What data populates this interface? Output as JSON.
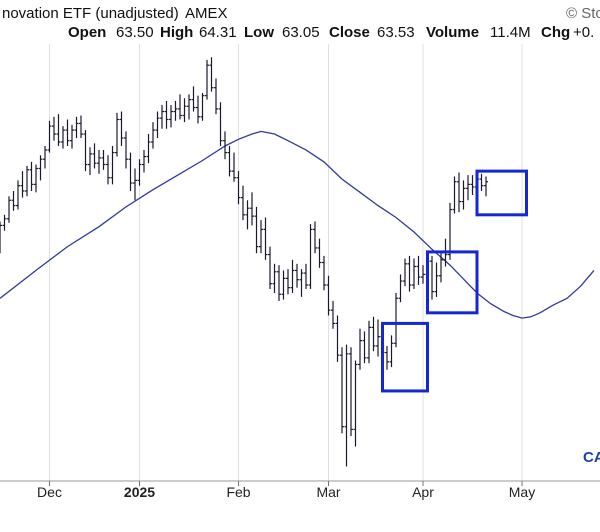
{
  "header": {
    "title": "novation ETF (unadjusted)",
    "exchange": "AMEX",
    "source": "© Sto",
    "open_label": "Open",
    "open_value": "63.50",
    "high_label": "High",
    "high_value": "64.31",
    "low_label": "Low",
    "low_value": "63.05",
    "close_label": "Close",
    "close_value": "63.53",
    "volume_label": "Volume",
    "volume_value": "11.4M",
    "chg_label": "Chg",
    "chg_value": "+0."
  },
  "watermark": "CA",
  "colors": {
    "bars": "#1a1a2e",
    "moving_average": "#2f3a9e",
    "boxes": "#1427d6",
    "grid": "#e0e0e0"
  },
  "chart_data": {
    "type": "ohlc",
    "ylim": [
      37,
      70
    ],
    "x_ticks": [
      {
        "label": "Dec",
        "x": 11,
        "bold": false
      },
      {
        "label": "2025",
        "x": 31,
        "bold": true
      },
      {
        "label": "Feb",
        "x": 53,
        "bold": false
      },
      {
        "label": "Mar",
        "x": 73,
        "bold": false
      },
      {
        "label": "Apr",
        "x": 94,
        "bold": false
      },
      {
        "label": "May",
        "x": 116,
        "bold": false
      }
    ],
    "price_bars": [
      [
        54.7,
        56.6,
        54.2,
        56.3
      ],
      [
        56.3,
        57.1,
        55.9,
        56.8
      ],
      [
        56.8,
        58.5,
        56.5,
        58.2
      ],
      [
        58.2,
        58.9,
        57.4,
        57.8
      ],
      [
        57.8,
        59.7,
        57.5,
        59.3
      ],
      [
        59.3,
        60.4,
        58.4,
        58.9
      ],
      [
        58.9,
        60.8,
        58.5,
        60.5
      ],
      [
        60.5,
        61.1,
        58.9,
        59.4
      ],
      [
        59.4,
        60.9,
        58.8,
        60.6
      ],
      [
        60.6,
        61.6,
        59.7,
        61.3
      ],
      [
        61.3,
        62.3,
        60.6,
        62.0
      ],
      [
        62.0,
        64.2,
        61.8,
        63.8
      ],
      [
        63.8,
        64.5,
        62.7,
        63.2
      ],
      [
        63.2,
        64.7,
        62.3,
        62.6
      ],
      [
        62.6,
        63.8,
        62.1,
        63.5
      ],
      [
        63.5,
        64.3,
        62.3,
        62.7
      ],
      [
        62.7,
        63.9,
        62.1,
        63.5
      ],
      [
        63.5,
        64.5,
        62.9,
        64.0
      ],
      [
        64.0,
        64.6,
        62.9,
        63.2
      ],
      [
        63.2,
        63.5,
        60.4,
        60.9
      ],
      [
        60.9,
        62.2,
        60.1,
        61.7
      ],
      [
        61.7,
        62.5,
        60.6,
        61.0
      ],
      [
        61.0,
        62.0,
        60.2,
        61.4
      ],
      [
        61.4,
        62.0,
        60.5,
        60.9
      ],
      [
        60.9,
        61.6,
        59.4,
        59.9
      ],
      [
        59.9,
        62.3,
        59.4,
        61.8
      ],
      [
        61.8,
        64.8,
        61.5,
        64.3
      ],
      [
        64.3,
        64.9,
        62.3,
        62.9
      ],
      [
        62.9,
        63.4,
        60.6,
        61.3
      ],
      [
        61.3,
        61.8,
        58.9,
        59.5
      ],
      [
        59.5,
        60.6,
        58.2,
        59.7
      ],
      [
        59.7,
        61.3,
        59.3,
        60.9
      ],
      [
        60.9,
        62.0,
        60.3,
        61.5
      ],
      [
        61.5,
        63.2,
        61.0,
        62.6
      ],
      [
        62.6,
        64.1,
        62.1,
        63.5
      ],
      [
        63.5,
        64.9,
        62.9,
        64.4
      ],
      [
        64.4,
        65.4,
        63.6,
        64.9
      ],
      [
        64.9,
        65.7,
        63.6,
        64.3
      ],
      [
        64.3,
        65.4,
        63.7,
        64.9
      ],
      [
        64.9,
        65.7,
        64.2,
        65.1
      ],
      [
        65.1,
        66.2,
        64.3,
        64.6
      ],
      [
        64.6,
        65.9,
        64.1,
        65.3
      ],
      [
        65.3,
        66.2,
        64.3,
        65.8
      ],
      [
        65.8,
        66.8,
        64.9,
        65.2
      ],
      [
        65.2,
        66.1,
        64.0,
        64.5
      ],
      [
        64.5,
        66.3,
        64.2,
        66.1
      ],
      [
        66.1,
        68.8,
        65.8,
        68.4
      ],
      [
        68.4,
        69.0,
        66.4,
        66.7
      ],
      [
        66.7,
        67.4,
        64.7,
        65.1
      ],
      [
        65.1,
        65.6,
        62.3,
        62.7
      ],
      [
        62.7,
        63.4,
        61.3,
        61.8
      ],
      [
        61.8,
        62.3,
        60.0,
        60.4
      ],
      [
        60.4,
        61.8,
        59.6,
        59.9
      ],
      [
        59.9,
        60.4,
        57.9,
        58.4
      ],
      [
        58.4,
        59.3,
        56.7,
        57.1
      ],
      [
        57.1,
        58.2,
        56.0,
        57.6
      ],
      [
        57.6,
        58.8,
        56.3,
        57.0
      ],
      [
        57.0,
        57.7,
        54.2,
        54.7
      ],
      [
        54.7,
        56.7,
        54.2,
        56.0
      ],
      [
        56.0,
        56.9,
        53.7,
        54.1
      ],
      [
        54.1,
        54.7,
        51.5,
        51.9
      ],
      [
        51.9,
        53.4,
        51.2,
        52.8
      ],
      [
        52.8,
        53.3,
        50.6,
        51.1
      ],
      [
        51.1,
        52.9,
        50.7,
        52.3
      ],
      [
        52.3,
        53.0,
        51.1,
        51.6
      ],
      [
        51.6,
        53.7,
        51.2,
        52.9
      ],
      [
        52.9,
        53.4,
        51.6,
        52.2
      ],
      [
        52.2,
        53.0,
        50.9,
        52.7
      ],
      [
        52.7,
        53.4,
        51.5,
        51.8
      ],
      [
        51.8,
        56.4,
        51.5,
        56.0
      ],
      [
        56.0,
        56.6,
        54.2,
        54.6
      ],
      [
        54.6,
        55.3,
        53.1,
        53.5
      ],
      [
        53.5,
        54.0,
        51.4,
        51.8
      ],
      [
        51.8,
        52.5,
        49.5,
        49.9
      ],
      [
        49.9,
        50.6,
        48.5,
        48.9
      ],
      [
        48.9,
        49.5,
        46.0,
        46.5
      ],
      [
        46.5,
        47.1,
        40.6,
        41.1
      ],
      [
        41.1,
        47.3,
        38.1,
        46.6
      ],
      [
        46.6,
        47.1,
        40.4,
        40.9
      ],
      [
        40.9,
        46.1,
        39.6,
        45.8
      ],
      [
        45.8,
        48.5,
        45.4,
        47.6
      ],
      [
        47.6,
        48.3,
        45.9,
        46.3
      ],
      [
        46.3,
        49.1,
        45.9,
        48.6
      ],
      [
        48.6,
        49.4,
        46.8,
        47.2
      ],
      [
        47.2,
        49.2,
        46.4,
        47.9
      ],
      [
        47.9,
        48.3,
        46.3,
        46.7
      ],
      [
        46.7,
        47.2,
        45.4,
        46.0
      ],
      [
        46.0,
        48.0,
        45.6,
        47.4
      ],
      [
        47.4,
        51.2,
        47.1,
        50.8
      ],
      [
        50.8,
        52.6,
        50.5,
        52.1
      ],
      [
        52.1,
        53.8,
        51.7,
        53.4
      ],
      [
        53.4,
        54.0,
        51.3,
        51.8
      ],
      [
        51.8,
        53.8,
        51.5,
        53.2
      ],
      [
        53.2,
        54.0,
        51.8,
        52.4
      ],
      [
        52.4,
        53.3,
        51.9,
        52.6
      ],
      [
        52.6,
        54.1,
        52.2,
        53.6
      ],
      [
        53.6,
        54.0,
        50.7,
        51.3
      ],
      [
        51.3,
        53.5,
        50.9,
        52.5
      ],
      [
        52.5,
        54.3,
        52.0,
        53.7
      ],
      [
        53.7,
        55.3,
        53.2,
        54.1
      ],
      [
        54.1,
        58.0,
        53.7,
        57.5
      ],
      [
        57.5,
        60.0,
        57.2,
        59.6
      ],
      [
        59.6,
        60.3,
        57.3,
        58.1
      ],
      [
        58.1,
        59.7,
        57.5,
        59.1
      ],
      [
        59.1,
        60.1,
        58.2,
        59.4
      ],
      [
        59.4,
        60.1,
        58.6,
        59.2
      ],
      [
        59.2,
        60.3,
        58.4,
        59.8
      ],
      [
        59.8,
        60.2,
        58.9,
        59.3
      ],
      [
        59.3,
        60.0,
        58.5,
        59.6
      ]
    ],
    "moving_average": [
      [
        0,
        50.8
      ],
      [
        8,
        52.9
      ],
      [
        15,
        54.7
      ],
      [
        22,
        56.2
      ],
      [
        28,
        57.7
      ],
      [
        34,
        59.0
      ],
      [
        40,
        60.2
      ],
      [
        45,
        61.2
      ],
      [
        50,
        62.3
      ],
      [
        53,
        62.8
      ],
      [
        56,
        63.2
      ],
      [
        58,
        63.4
      ],
      [
        61,
        63.2
      ],
      [
        64,
        62.7
      ],
      [
        68,
        62.0
      ],
      [
        72,
        61.1
      ],
      [
        76,
        59.8
      ],
      [
        80,
        58.8
      ],
      [
        84,
        57.8
      ],
      [
        88,
        56.9
      ],
      [
        92,
        55.8
      ],
      [
        96,
        54.5
      ],
      [
        100,
        53.3
      ],
      [
        104,
        51.9
      ],
      [
        106,
        51.2
      ],
      [
        109,
        50.4
      ],
      [
        112,
        49.8
      ],
      [
        114,
        49.5
      ],
      [
        116,
        49.3
      ],
      [
        118,
        49.4
      ],
      [
        120,
        49.7
      ],
      [
        123,
        50.3
      ],
      [
        126,
        50.8
      ],
      [
        129,
        51.7
      ],
      [
        132,
        52.9
      ]
    ],
    "boxes": [
      {
        "x0": 85,
        "x1": 95,
        "y_low": 43.8,
        "y_high": 48.9
      },
      {
        "x0": 95,
        "x1": 106,
        "y_low": 49.7,
        "y_high": 54.3
      },
      {
        "x0": 106,
        "x1": 117,
        "y_low": 57.1,
        "y_high": 60.4
      }
    ]
  }
}
